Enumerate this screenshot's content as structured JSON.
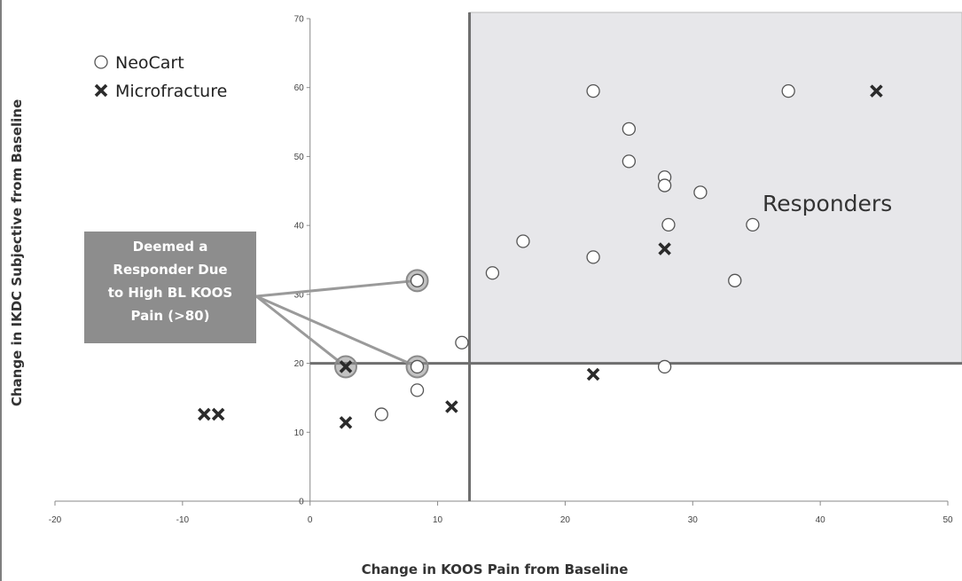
{
  "chart_data": {
    "type": "scatter",
    "xlabel": "Change in KOOS Pain from Baseline",
    "ylabel": "Change in IKDC Subjective from Baseline",
    "xlim": [
      -20,
      50
    ],
    "ylim": [
      0,
      70
    ],
    "xticks": [
      "-20",
      "-10",
      "0",
      "10",
      "20",
      "30",
      "40",
      "50"
    ],
    "yticks": [
      "0",
      "10",
      "20",
      "30",
      "40",
      "50",
      "60",
      "70"
    ],
    "grid": false,
    "legend_position": "top-left",
    "thresholds": {
      "x": 12.5,
      "y": 20
    },
    "region_label": "Responders",
    "callout": {
      "lines": [
        "Deemed a",
        "Responder Due",
        "to High BL KOOS",
        "Pain (>80)"
      ],
      "targets": [
        {
          "x": 8.4,
          "y": 32
        },
        {
          "x": 8.4,
          "y": 19.5
        },
        {
          "x": 2.8,
          "y": 19.5
        }
      ]
    },
    "series": [
      {
        "name": "NeoCart",
        "marker": "circle",
        "points": [
          {
            "x": 22.2,
            "y": 59.5
          },
          {
            "x": 37.5,
            "y": 59.5
          },
          {
            "x": 25,
            "y": 54
          },
          {
            "x": 25,
            "y": 49.3
          },
          {
            "x": 27.8,
            "y": 47
          },
          {
            "x": 27.8,
            "y": 45.8
          },
          {
            "x": 30.6,
            "y": 44.8
          },
          {
            "x": 28.1,
            "y": 40.1
          },
          {
            "x": 34.7,
            "y": 40.1
          },
          {
            "x": 16.7,
            "y": 37.7
          },
          {
            "x": 22.2,
            "y": 35.4
          },
          {
            "x": 14.3,
            "y": 33.1
          },
          {
            "x": 33.3,
            "y": 32
          },
          {
            "x": 8.4,
            "y": 32
          },
          {
            "x": 11.9,
            "y": 23
          },
          {
            "x": 8.4,
            "y": 19.5
          },
          {
            "x": 27.8,
            "y": 19.5
          },
          {
            "x": 8.4,
            "y": 16.1
          },
          {
            "x": 5.6,
            "y": 12.6
          }
        ]
      },
      {
        "name": "Microfracture",
        "marker": "x",
        "points": [
          {
            "x": 44.4,
            "y": 59.5
          },
          {
            "x": 27.8,
            "y": 36.6
          },
          {
            "x": 22.2,
            "y": 18.4
          },
          {
            "x": 11.1,
            "y": 13.7
          },
          {
            "x": 2.8,
            "y": 11.4
          },
          {
            "x": 2.8,
            "y": 19.5
          },
          {
            "x": -8.3,
            "y": 12.6
          },
          {
            "x": -7.2,
            "y": 12.6
          }
        ]
      }
    ],
    "highlighted": [
      {
        "x": 8.4,
        "y": 32
      },
      {
        "x": 8.4,
        "y": 19.5
      },
      {
        "x": 2.8,
        "y": 19.5
      }
    ]
  }
}
